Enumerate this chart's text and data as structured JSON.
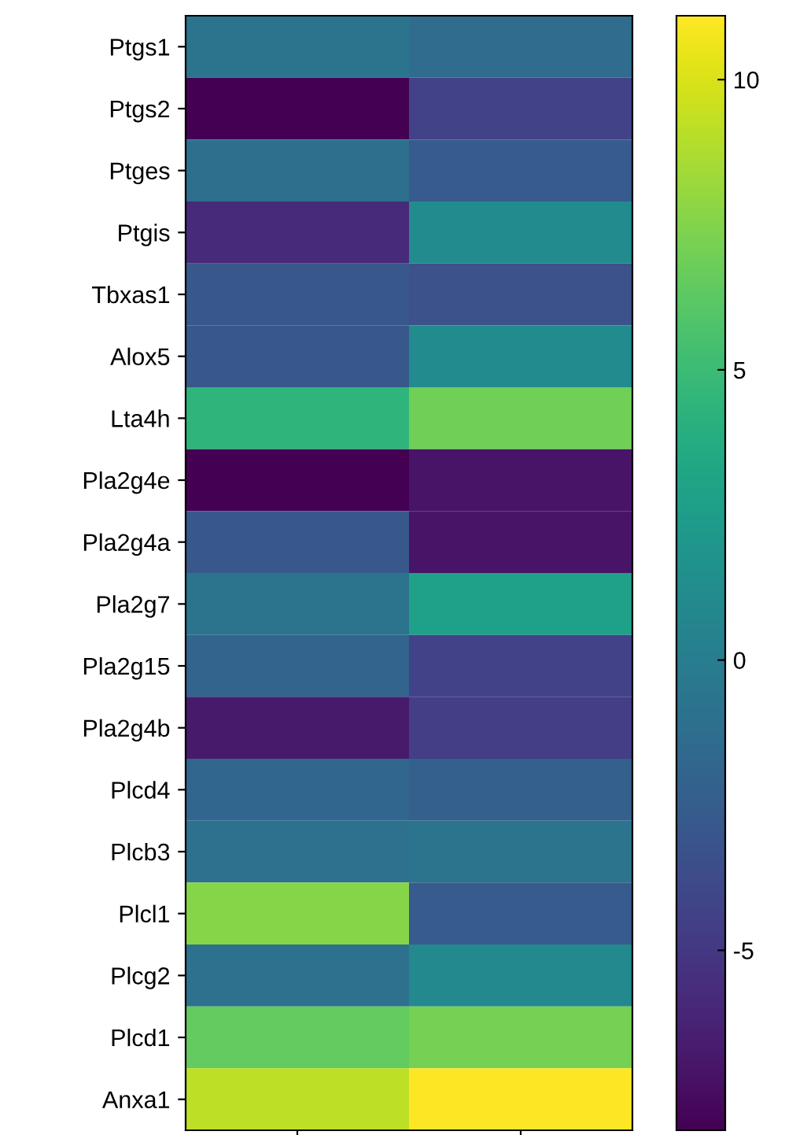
{
  "chart_data": {
    "type": "heatmap",
    "categories": [
      null,
      null
    ],
    "y_categories": [
      "Ptgs1",
      "Ptgs2",
      "Ptges",
      "Ptgis",
      "Tbxas1",
      "Alox5",
      "Lta4h",
      "Pla2g4e",
      "Pla2g4a",
      "Pla2g7",
      "Pla2g15",
      "Pla2g4b",
      "Plcd4",
      "Plcb3",
      "Plcl1",
      "Plcg2",
      "Plcd1",
      "Anxa1"
    ],
    "cells": [
      [
        -0.8,
        -1.4
      ],
      [
        -8.1,
        -4.3
      ],
      [
        -1.2,
        -2.7
      ],
      [
        -5.8,
        1.1
      ],
      [
        -2.9,
        -3.3
      ],
      [
        -2.9,
        1.1
      ],
      [
        4.4,
        6.9
      ],
      [
        -8.1,
        -7.1
      ],
      [
        -2.9,
        -7.1
      ],
      [
        -0.8,
        2.7
      ],
      [
        -2.0,
        -4.3
      ],
      [
        -6.8,
        -4.6
      ],
      [
        -1.8,
        -2.3
      ],
      [
        -1.0,
        -0.8
      ],
      [
        7.6,
        -2.7
      ],
      [
        -1.0,
        0.9
      ],
      [
        6.5,
        7.1
      ],
      [
        9.2,
        11.1
      ]
    ],
    "clim": [
      -8.1,
      11.1
    ],
    "cticks": [
      {
        "value": -5,
        "label": "-5"
      },
      0,
      5,
      10
    ]
  }
}
